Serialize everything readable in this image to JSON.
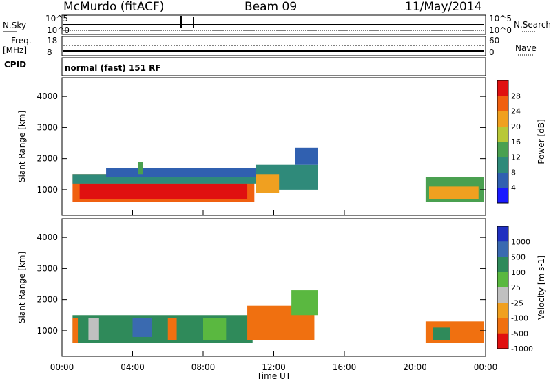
{
  "header": {
    "station": "McMurdo (fitACF)",
    "beam": "Beam 09",
    "date": "11/May/2014"
  },
  "aux_panels": {
    "nsky_label": "N.Sky",
    "nsearch_label": "N.Search",
    "nsky_ticks": [
      "10^5",
      "10^0"
    ],
    "nsearch_ticks": [
      "10^5",
      "10^0"
    ],
    "freq_label": "Freq.",
    "freq_unit": "[MHz]",
    "freq_ticks": [
      "18",
      "8"
    ],
    "nave_label": "Nave",
    "nave_ticks": [
      "60",
      "0"
    ],
    "cpid_label": "CPID",
    "cpid_value": "normal (fast) 151 RF"
  },
  "chart_data": [
    {
      "type": "heatmap",
      "name": "power",
      "ylabel": "Slant Range [km]",
      "xlabel": "",
      "yticks": [
        "1000",
        "2000",
        "3000",
        "4000"
      ],
      "ylim": [
        180,
        4600
      ],
      "xlim_hours": [
        0,
        24
      ],
      "colorbar": {
        "label": "Power [dB]",
        "ticks": [
          "4",
          "8",
          "12",
          "16",
          "20",
          "24",
          "28"
        ],
        "colors": [
          "#1a1aff",
          "#3060b0",
          "#2f8a7a",
          "#4aa050",
          "#b8c838",
          "#f0a020",
          "#f06010",
          "#e01010"
        ],
        "range": [
          0,
          32
        ]
      },
      "cells": [
        {
          "t0": 0.6,
          "t1": 10.9,
          "r0": 600,
          "r1": 1500,
          "v": 24
        },
        {
          "t0": 1.0,
          "t1": 10.5,
          "r0": 700,
          "r1": 1200,
          "v": 29
        },
        {
          "t0": 0.6,
          "t1": 11.5,
          "r0": 1200,
          "r1": 1500,
          "v": 10
        },
        {
          "t0": 2.5,
          "t1": 11.5,
          "r0": 1400,
          "r1": 1700,
          "v": 7
        },
        {
          "t0": 11.0,
          "t1": 14.5,
          "r0": 1000,
          "r1": 1800,
          "v": 8
        },
        {
          "t0": 11.0,
          "t1": 12.3,
          "r0": 900,
          "r1": 1500,
          "v": 21
        },
        {
          "t0": 13.2,
          "t1": 14.5,
          "r0": 1800,
          "r1": 2350,
          "v": 6
        },
        {
          "t0": 20.6,
          "t1": 23.9,
          "r0": 600,
          "r1": 1400,
          "v": 13
        },
        {
          "t0": 20.8,
          "t1": 23.6,
          "r0": 700,
          "r1": 1100,
          "v": 22
        },
        {
          "t0": 4.3,
          "t1": 4.6,
          "r0": 1500,
          "r1": 1900,
          "v": 14
        }
      ]
    },
    {
      "type": "heatmap",
      "name": "velocity",
      "ylabel": "Slant Range [km]",
      "xlabel": "Time UT",
      "xticks": [
        "00:00",
        "04:00",
        "08:00",
        "12:00",
        "16:00",
        "20:00",
        "00:00"
      ],
      "yticks": [
        "1000",
        "2000",
        "3000",
        "4000"
      ],
      "ylim": [
        180,
        4600
      ],
      "xlim_hours": [
        0,
        24
      ],
      "colorbar": {
        "label": "Velocity [m s-1]",
        "ticks": [
          "1000",
          "500",
          "100",
          "25",
          "-25",
          "-100",
          "-500",
          "-1000"
        ],
        "colors": [
          "#2030c0",
          "#3a6ab0",
          "#2f8a5a",
          "#5ab840",
          "#c0c0c0",
          "#f0a020",
          "#f07010",
          "#e01010"
        ],
        "range": [
          -1000,
          1000
        ]
      },
      "cells": [
        {
          "t0": 0.6,
          "t1": 10.8,
          "r0": 600,
          "r1": 1500,
          "v": 150
        },
        {
          "t0": 0.6,
          "t1": 0.9,
          "r0": 600,
          "r1": 1400,
          "v": -300
        },
        {
          "t0": 1.5,
          "t1": 2.1,
          "r0": 700,
          "r1": 1400,
          "v": 0
        },
        {
          "t0": 4.0,
          "t1": 5.1,
          "r0": 800,
          "r1": 1400,
          "v": 800
        },
        {
          "t0": 6.0,
          "t1": 6.5,
          "r0": 700,
          "r1": 1400,
          "v": -200
        },
        {
          "t0": 8.0,
          "t1": 9.5,
          "r0": 700,
          "r1": 1400,
          "v": 60
        },
        {
          "t0": 9.3,
          "t1": 10.2,
          "r0": 700,
          "r1": 1400,
          "v": 400
        },
        {
          "t0": 10.5,
          "t1": 14.3,
          "r0": 700,
          "r1": 1800,
          "v": -300
        },
        {
          "t0": 13.0,
          "t1": 14.5,
          "r0": 1500,
          "r1": 2300,
          "v": 60
        },
        {
          "t0": 20.6,
          "t1": 23.9,
          "r0": 600,
          "r1": 1300,
          "v": -250
        },
        {
          "t0": 21.0,
          "t1": 22.0,
          "r0": 700,
          "r1": 1100,
          "v": 200
        }
      ]
    }
  ]
}
